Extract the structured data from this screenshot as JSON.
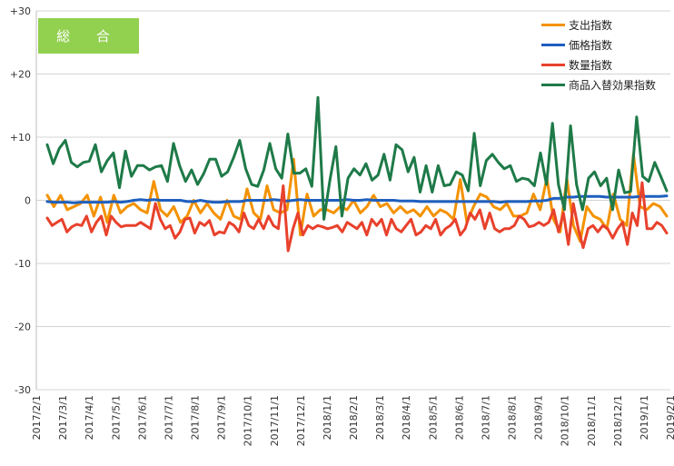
{
  "chart_data": {
    "type": "line",
    "badge": "総 合",
    "yticks": [
      "+30",
      "+20",
      "+10",
      "0",
      "-10",
      "-20",
      "-30"
    ],
    "ylim": [
      -30,
      30
    ],
    "xticks": [
      "2017/2/1",
      "2017/3/1",
      "2017/4/1",
      "2017/5/1",
      "2017/6/1",
      "2017/7/1",
      "2017/8/1",
      "2017/9/1",
      "2017/10/1",
      "2017/11/1",
      "2017/12/1",
      "2018/1/1",
      "2018/2/1",
      "2018/3/1",
      "2018/4/1",
      "2018/5/1",
      "2018/6/1",
      "2018/7/1",
      "2018/8/1",
      "2018/9/1",
      "2018/10/1",
      "2018/11/1",
      "2018/12/1",
      "2019/1/1",
      "2019/2/1"
    ],
    "grid": true,
    "legend_position": "top-right",
    "series": [
      {
        "name": "支出指数",
        "color": "#f39200",
        "values": [
          0.8,
          -1,
          0.8,
          -1.5,
          -1,
          -0.5,
          0.8,
          -2.5,
          0.5,
          -3.5,
          0.8,
          -2,
          -1,
          -0.5,
          -1.5,
          -2,
          3,
          -1.5,
          -2.5,
          -1,
          -3.5,
          -2.5,
          0,
          -2,
          -0.5,
          -2,
          -3,
          0,
          -2.5,
          -3,
          1.8,
          -2,
          -3,
          2.3,
          -1.5,
          -2,
          -1.5,
          6.5,
          -5.5,
          1,
          -2.5,
          -1.5,
          -1.5,
          -2,
          -1,
          -1.5,
          0,
          -2,
          -1,
          0.8,
          -1,
          -0.5,
          -2,
          -1,
          -2,
          -1.5,
          -2.5,
          -1,
          -2.5,
          -1.5,
          -2,
          -3,
          3.3,
          -3.5,
          -1,
          1,
          0.5,
          -1,
          -1.5,
          -0.5,
          -2.5,
          -2.5,
          -2,
          1,
          -1.5,
          3.5,
          -3,
          -5,
          3.5,
          -4,
          -6.5,
          -1,
          -2.5,
          -3,
          -4.5,
          1,
          -3,
          -4,
          7.3,
          -1,
          -1.5,
          -0.5,
          -1,
          -2.5
        ]
      },
      {
        "name": "価格指数",
        "color": "#1f5fbf",
        "values": [
          -0.2,
          -0.3,
          -0.3,
          -0.3,
          -0.4,
          -0.3,
          -0.3,
          -0.3,
          -0.3,
          -0.3,
          -0.2,
          -0.3,
          -0.2,
          0,
          0.1,
          0,
          0.1,
          0,
          0,
          0,
          0,
          -0.2,
          -0.2,
          0,
          -0.2,
          -0.3,
          -0.3,
          -0.2,
          -0.2,
          -0.2,
          0,
          0,
          0,
          0,
          0.1,
          0,
          -0.1,
          0,
          0.1,
          0,
          0,
          0,
          0,
          0,
          0,
          0.1,
          0,
          0,
          0.1,
          0,
          0,
          0,
          0,
          -0.1,
          -0.1,
          -0.1,
          -0.2,
          -0.2,
          -0.2,
          -0.2,
          -0.2,
          -0.2,
          -0.2,
          -0.2,
          -0.2,
          -0.2,
          -0.2,
          -0.2,
          -0.3,
          -0.2,
          -0.2,
          -0.2,
          -0.2,
          -0.1,
          -0.1,
          0,
          0.3,
          0.3,
          0.5,
          0.5,
          0.6,
          0.6,
          0.6,
          0.6,
          0.5,
          0.5,
          0.5,
          0.5,
          0.5,
          0.6,
          0.6,
          0.6,
          0.6,
          0.7
        ]
      },
      {
        "name": "数量指数",
        "color": "#e8412c",
        "values": [
          -2.8,
          -4,
          -3.5,
          -3,
          -5,
          -4.2,
          -3.8,
          -4,
          -2.5,
          -5,
          -3.5,
          -2.5,
          -5.5,
          -2.5,
          -3.5,
          -4.2,
          -4,
          -4,
          -4,
          -3.5,
          -4,
          -4.5,
          -0.5,
          -3,
          -4.5,
          -4,
          -6,
          -5,
          -3,
          -2.8,
          -5.2,
          -3.5,
          -4,
          -3.2,
          -5.5,
          -5,
          -5.2,
          -3.5,
          -4,
          -5,
          -2,
          -4,
          -4.5,
          -3,
          -4.5,
          -2.5,
          -4,
          -4.5,
          2.3,
          -8,
          -4.5,
          -2,
          -5.5,
          -4,
          -4.5,
          -4,
          -4.2,
          -4.5,
          -4.3,
          -4,
          -5,
          -3.5,
          -4,
          -4.5,
          -3.5,
          -5.5,
          -3,
          -4,
          -3,
          -5.5,
          -3,
          -4.5,
          -5,
          -4,
          -3,
          -5.5,
          -5,
          -4,
          -4.5,
          -3,
          -5.5,
          -4.5,
          -4,
          -3,
          -5.5,
          -4.5,
          -2,
          -3,
          -1.5,
          -4.5,
          -2,
          -4.5,
          -5,
          -4.5,
          -4.5,
          -4,
          -2.5,
          -3,
          -4.2,
          -4,
          -3.5,
          -4,
          -3.5,
          -1.5,
          -5,
          -2,
          -7,
          -0.5,
          -4.5,
          -7.5,
          -4.5,
          -4,
          -5,
          -4,
          -4.5,
          -6,
          -4.5,
          -3.5,
          -7,
          -2,
          -4,
          2.8,
          -4.5,
          -4.5,
          -3.5,
          -4,
          -5.2
        ]
      },
      {
        "name": "商品入替効果指数",
        "color": "#1e7a48",
        "values": [
          8.8,
          5.8,
          8.2,
          9.5,
          6,
          5.3,
          6,
          6.2,
          8.8,
          4.5,
          6.3,
          7.5,
          2,
          7.8,
          3.8,
          5.5,
          5.5,
          4.8,
          5.3,
          5.5,
          3,
          9,
          5.5,
          3,
          4.8,
          2.5,
          4.2,
          6.5,
          6.5,
          3.8,
          4.5,
          6.8,
          9.5,
          5,
          2.5,
          2.2,
          4.8,
          9,
          5,
          3.5,
          10.5,
          4.3,
          4.3,
          5,
          2.2,
          16.3,
          -3,
          3.2,
          8.5,
          -2.5,
          3.5,
          5,
          4,
          5.8,
          3.2,
          4,
          7.3,
          3.2,
          8.8,
          8,
          4.5,
          6.8,
          1.3,
          5.5,
          1.3,
          5.5,
          2.3,
          2.5,
          4.5,
          4,
          1.5,
          10.6,
          2.3,
          6.3,
          7.3,
          6,
          5,
          5.5,
          3,
          3.5,
          3.3,
          2.3,
          7.5,
          2.5,
          12.2,
          2.5,
          -1.5,
          11.8,
          2.5,
          -1.5,
          3.5,
          4.5,
          2.3,
          3.5,
          -1.5,
          4.8,
          1.2,
          1.4,
          13.2,
          3.8,
          3,
          6,
          3.8,
          1.5
        ]
      }
    ]
  }
}
